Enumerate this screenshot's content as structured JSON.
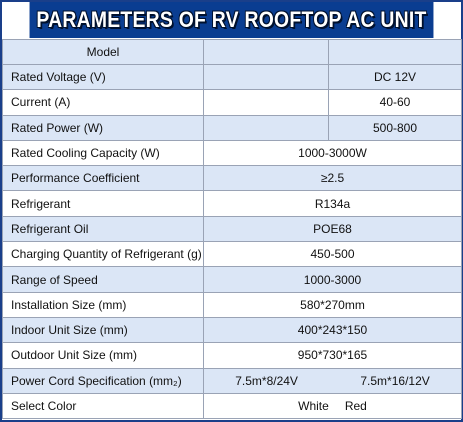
{
  "title": "PARAMETERS OF RV ROOFTOP AC UNIT",
  "header": {
    "label": "Model"
  },
  "rows": [
    {
      "label": "Rated Voltage (V)",
      "value": "DC 12V"
    },
    {
      "label": "Current (A)",
      "value": "40-60"
    },
    {
      "label": "Rated Power (W)",
      "value": "500-800"
    },
    {
      "label": "Rated Cooling Capacity (W)",
      "value": "1000-3000W"
    },
    {
      "label": "Performance Coefficient",
      "value": "≥2.5"
    },
    {
      "label": "Refrigerant",
      "value": "R134a"
    },
    {
      "label": "Refrigerant Oil",
      "value": "POE68"
    },
    {
      "label": "Charging Quantity of Refrigerant (g)",
      "value": "450-500"
    },
    {
      "label": "Range of Speed",
      "value": "1000-3000"
    },
    {
      "label": "Installation Size (mm)",
      "value": "580*270mm"
    },
    {
      "label": "Indoor Unit Size (mm)",
      "value": "400*243*150"
    },
    {
      "label": "Outdoor Unit Size (mm)",
      "value": "950*730*165"
    },
    {
      "label": "Power Cord Specification (mm₂)",
      "values": [
        "7.5m*8/24V",
        "7.5m*16/12V"
      ]
    },
    {
      "label": "Select Color",
      "values": [
        "White",
        "Red"
      ]
    }
  ],
  "colors": {
    "title_bg": "#0a3d91",
    "row_alt": "#dbe6f6",
    "border": "#9aa3b5"
  }
}
